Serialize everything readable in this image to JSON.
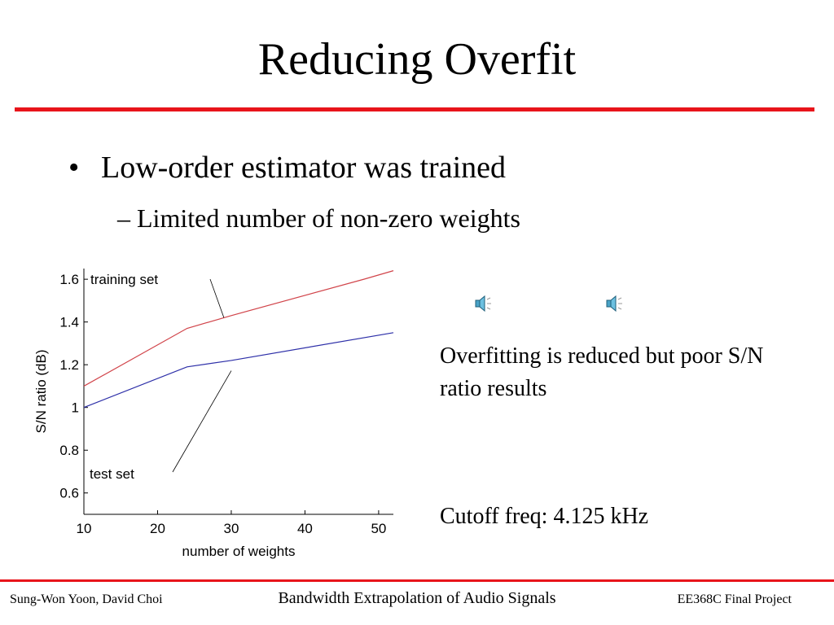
{
  "slide": {
    "title": "Reducing Overfit",
    "bullet": "Low-order estimator was trained",
    "bullet_marker": "•",
    "subbullet": "– Limited number of non-zero weights",
    "note": "Overfitting is reduced but poor S/N ratio results",
    "cutoff": "Cutoff freq: 4.125 kHz",
    "speaker_icons": [
      "speaker-icon",
      "speaker-icon"
    ]
  },
  "footer": {
    "authors": "Sung-Won Yoon, David Choi",
    "title": "Bandwidth Extrapolation of Audio Signals",
    "project": "EE368C Final Project"
  },
  "colors": {
    "accent_rule": "#e8141b",
    "training_line": "#d1444a",
    "test_line": "#2d2fa8"
  },
  "chart_data": {
    "type": "line",
    "xlabel": "number of weights",
    "ylabel": "S/N ratio (dB)",
    "xlim": [
      10,
      52
    ],
    "ylim": [
      0.5,
      1.65
    ],
    "xticks": [
      10,
      20,
      30,
      40,
      50
    ],
    "yticks": [
      0.6,
      0.8,
      1,
      1.2,
      1.4,
      1.6
    ],
    "ytick_labels": [
      "0.6",
      "0.8",
      "1",
      "1.2",
      "1.4",
      "1.6"
    ],
    "grid": false,
    "series": [
      {
        "name": "training set",
        "x": [
          10,
          24,
          30,
          48,
          52
        ],
        "y": [
          1.1,
          1.37,
          1.43,
          1.6,
          1.64
        ]
      },
      {
        "name": "test set",
        "x": [
          10,
          24,
          30,
          52
        ],
        "y": [
          1.0,
          1.19,
          1.22,
          1.35
        ]
      }
    ],
    "annotations": [
      {
        "text": "training set",
        "pointer_to": [
          29,
          1.42
        ]
      },
      {
        "text": "test set",
        "pointer_to": [
          30,
          1.21
        ]
      }
    ]
  }
}
